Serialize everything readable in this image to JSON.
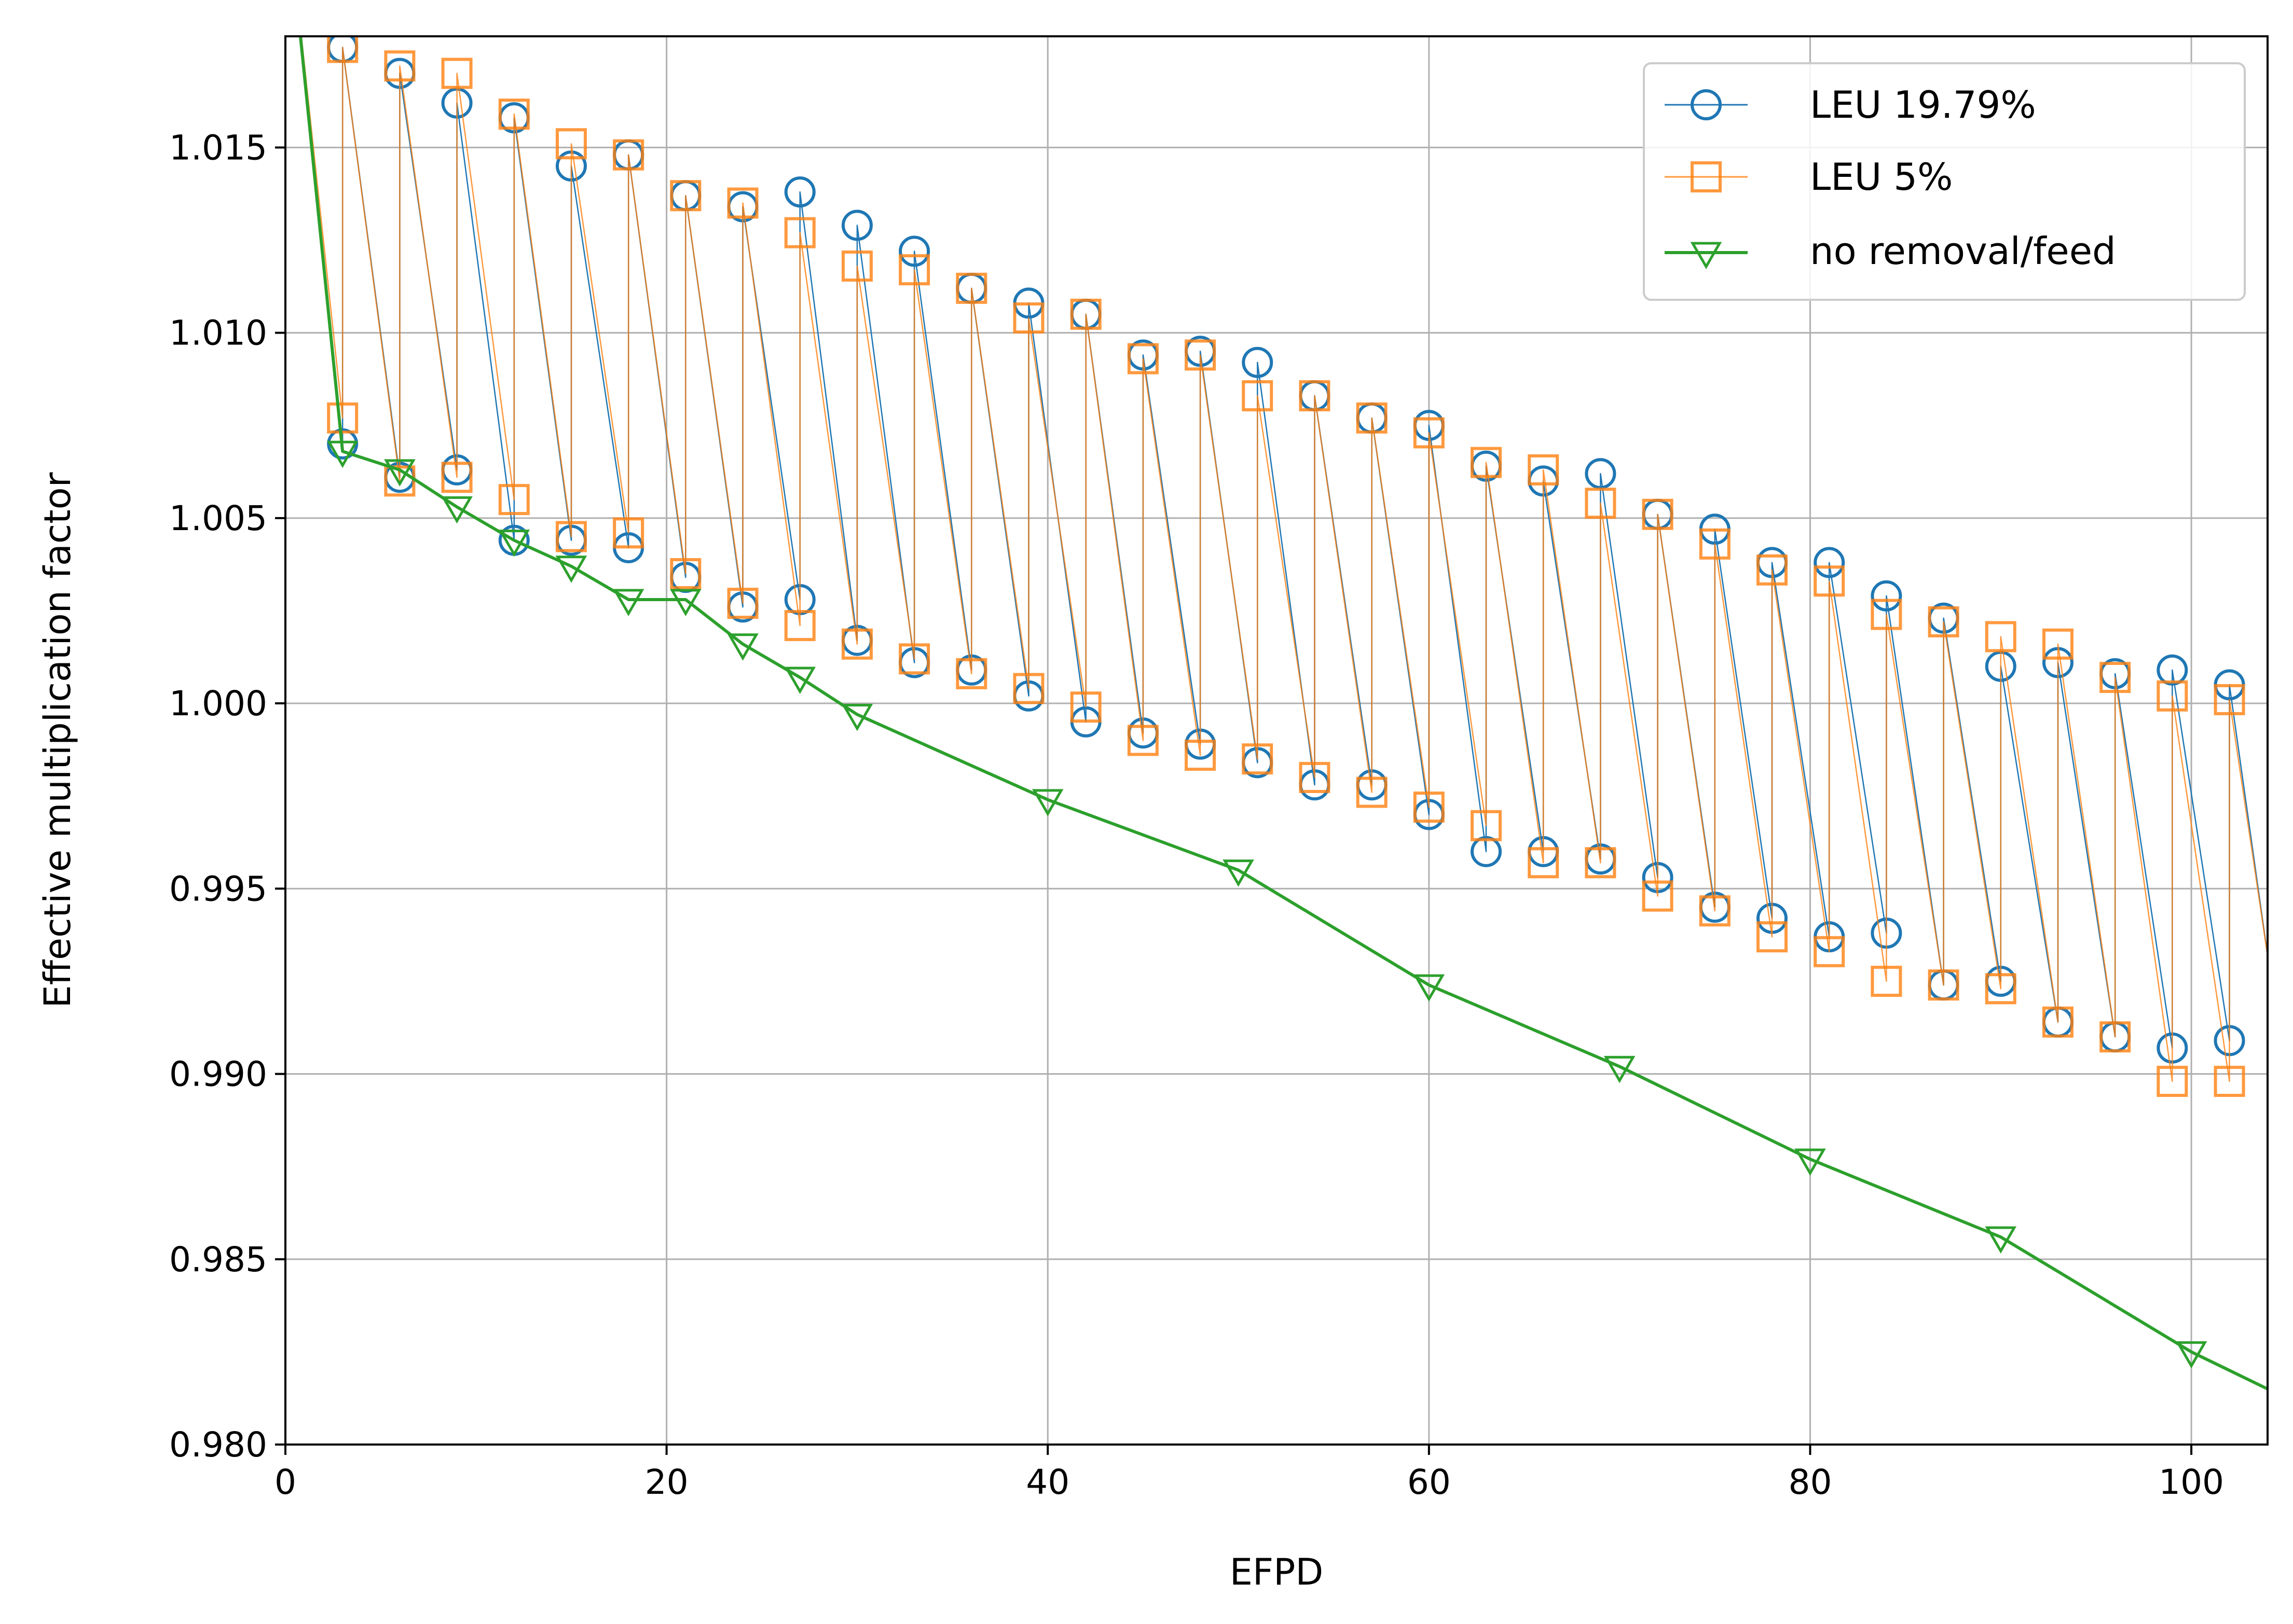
{
  "chart_data": {
    "type": "line",
    "xlabel": "EFPD",
    "ylabel": "Effective multiplication factor",
    "xlim": [
      0,
      104
    ],
    "ylim": [
      0.98,
      1.018
    ],
    "xticks": [
      0,
      20,
      40,
      60,
      80,
      100
    ],
    "yticks": [
      0.98,
      0.985,
      0.99,
      0.995,
      1.0,
      1.005,
      1.01,
      1.015
    ],
    "xtick_labels": [
      "0",
      "20",
      "40",
      "60",
      "80",
      "100"
    ],
    "ytick_labels": [
      "0.980",
      "0.985",
      "0.990",
      "0.995",
      "1.000",
      "1.005",
      "1.010",
      "1.015"
    ],
    "grid": true,
    "legend_position": "top-right",
    "series": [
      {
        "name": "LEU 19.79%",
        "color": "#1f77b4",
        "marker": "circle",
        "points": [
          [
            0,
            1.022
          ],
          [
            3,
            1.007
          ],
          [
            3,
            1.0177
          ],
          [
            6,
            1.0061
          ],
          [
            6,
            1.017
          ],
          [
            9,
            1.0063
          ],
          [
            9,
            1.0162
          ],
          [
            12,
            1.0044
          ],
          [
            12,
            1.0158
          ],
          [
            15,
            1.0044
          ],
          [
            15,
            1.0145
          ],
          [
            18,
            1.0042
          ],
          [
            18,
            1.0148
          ],
          [
            21,
            1.0034
          ],
          [
            21,
            1.0137
          ],
          [
            24,
            1.0026
          ],
          [
            24,
            1.0134
          ],
          [
            27,
            1.0028
          ],
          [
            27,
            1.0138
          ],
          [
            30,
            1.0017
          ],
          [
            30,
            1.0129
          ],
          [
            33,
            1.0011
          ],
          [
            33,
            1.0122
          ],
          [
            36,
            1.0009
          ],
          [
            36,
            1.0112
          ],
          [
            39,
            1.0002
          ],
          [
            39,
            1.0108
          ],
          [
            42,
            0.9995
          ],
          [
            42,
            1.0105
          ],
          [
            45,
            0.9992
          ],
          [
            45,
            1.0094
          ],
          [
            48,
            0.9989
          ],
          [
            48,
            1.0095
          ],
          [
            51,
            0.9984
          ],
          [
            51,
            1.0092
          ],
          [
            54,
            0.9978
          ],
          [
            54,
            1.0083
          ],
          [
            57,
            0.9978
          ],
          [
            57,
            1.0077
          ],
          [
            60,
            0.997
          ],
          [
            60,
            1.0075
          ],
          [
            63,
            0.996
          ],
          [
            63,
            1.0064
          ],
          [
            66,
            0.996
          ],
          [
            66,
            1.006
          ],
          [
            69,
            0.9958
          ],
          [
            69,
            1.0062
          ],
          [
            72,
            0.9953
          ],
          [
            72,
            1.0051
          ],
          [
            75,
            0.9945
          ],
          [
            75,
            1.0047
          ],
          [
            78,
            0.9942
          ],
          [
            78,
            1.0038
          ],
          [
            81,
            0.9937
          ],
          [
            81,
            1.0038
          ],
          [
            84,
            0.9938
          ],
          [
            84,
            1.0029
          ],
          [
            87,
            0.9924
          ],
          [
            87,
            1.0023
          ],
          [
            90,
            0.9925
          ],
          [
            90,
            1.001
          ],
          [
            93,
            0.9914
          ],
          [
            93,
            1.0011
          ],
          [
            96,
            0.991
          ],
          [
            96,
            1.0008
          ],
          [
            99,
            0.9907
          ],
          [
            99,
            1.0009
          ],
          [
            102,
            0.9909
          ],
          [
            102,
            1.0005
          ],
          [
            104,
            0.9932
          ]
        ]
      },
      {
        "name": "LEU 5%",
        "color": "#ff7f0e",
        "marker": "square",
        "points": [
          [
            0,
            1.022
          ],
          [
            3,
            1.0077
          ],
          [
            3,
            1.0177
          ],
          [
            6,
            1.006
          ],
          [
            6,
            1.0172
          ],
          [
            9,
            1.0061
          ],
          [
            9,
            1.017
          ],
          [
            12,
            1.0055
          ],
          [
            12,
            1.0159
          ],
          [
            15,
            1.0045
          ],
          [
            15,
            1.0151
          ],
          [
            18,
            1.0046
          ],
          [
            18,
            1.0148
          ],
          [
            21,
            1.0035
          ],
          [
            21,
            1.0137
          ],
          [
            24,
            1.0027
          ],
          [
            24,
            1.0135
          ],
          [
            27,
            1.0021
          ],
          [
            27,
            1.0127
          ],
          [
            30,
            1.0016
          ],
          [
            30,
            1.0118
          ],
          [
            33,
            1.0012
          ],
          [
            33,
            1.0117
          ],
          [
            36,
            1.0008
          ],
          [
            36,
            1.0112
          ],
          [
            39,
            1.0004
          ],
          [
            39,
            1.0104
          ],
          [
            42,
            0.9999
          ],
          [
            42,
            1.0105
          ],
          [
            45,
            0.999
          ],
          [
            45,
            1.0093
          ],
          [
            48,
            0.9986
          ],
          [
            48,
            1.0094
          ],
          [
            51,
            0.9985
          ],
          [
            51,
            1.0083
          ],
          [
            54,
            0.998
          ],
          [
            54,
            1.0083
          ],
          [
            57,
            0.9976
          ],
          [
            57,
            1.0077
          ],
          [
            60,
            0.9972
          ],
          [
            60,
            1.0073
          ],
          [
            63,
            0.9967
          ],
          [
            63,
            1.0065
          ],
          [
            66,
            0.9957
          ],
          [
            66,
            1.0063
          ],
          [
            69,
            0.9957
          ],
          [
            69,
            1.0054
          ],
          [
            72,
            0.9948
          ],
          [
            72,
            1.0051
          ],
          [
            75,
            0.9944
          ],
          [
            75,
            1.0043
          ],
          [
            78,
            0.9937
          ],
          [
            78,
            1.0036
          ],
          [
            81,
            0.9933
          ],
          [
            81,
            1.0033
          ],
          [
            84,
            0.9925
          ],
          [
            84,
            1.0024
          ],
          [
            87,
            0.9924
          ],
          [
            87,
            1.0022
          ],
          [
            90,
            0.9923
          ],
          [
            90,
            1.0018
          ],
          [
            93,
            0.9914
          ],
          [
            93,
            1.0016
          ],
          [
            96,
            0.991
          ],
          [
            96,
            1.0007
          ],
          [
            99,
            0.9898
          ],
          [
            99,
            1.0002
          ],
          [
            102,
            0.9898
          ],
          [
            102,
            1.0001
          ],
          [
            104,
            0.9932
          ]
        ]
      },
      {
        "name": "no removal/feed",
        "color": "#2ca02c",
        "marker": "triangle-down",
        "points": [
          [
            0,
            1.022
          ],
          [
            3,
            1.0068
          ],
          [
            6,
            1.0063
          ],
          [
            9,
            1.0053
          ],
          [
            12,
            1.0044
          ],
          [
            15,
            1.0037
          ],
          [
            18,
            1.0028
          ],
          [
            21,
            1.0028
          ],
          [
            24,
            1.0016
          ],
          [
            27,
            1.0007
          ],
          [
            30,
            0.9997
          ],
          [
            40,
            0.9974
          ],
          [
            50,
            0.9955
          ],
          [
            60,
            0.9924
          ],
          [
            70,
            0.9902
          ],
          [
            80,
            0.9877
          ],
          [
            90,
            0.9856
          ],
          [
            100,
            0.9825
          ],
          [
            104,
            0.9815
          ]
        ]
      }
    ]
  }
}
